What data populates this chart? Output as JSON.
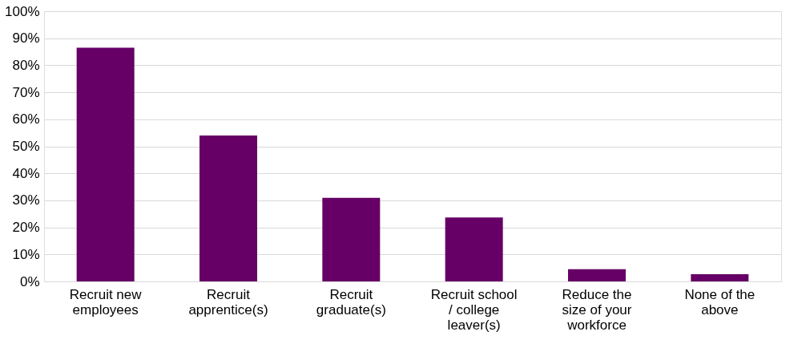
{
  "chart_data": {
    "type": "bar",
    "categories": [
      "Recruit new employees",
      "Recruit apprentice(s)",
      "Recruit graduate(s)",
      "Recruit school / college leaver(s)",
      "Reduce the size of your workforce",
      "None of the above"
    ],
    "values": [
      86.5,
      54,
      30.9,
      23.7,
      4.5,
      2.7
    ],
    "color": "#660066",
    "ylim": [
      0,
      100
    ],
    "yticks": [
      {
        "value": 0,
        "label": "0%"
      },
      {
        "value": 10,
        "label": "10%"
      },
      {
        "value": 20,
        "label": "20%"
      },
      {
        "value": 30,
        "label": "30%"
      },
      {
        "value": 40,
        "label": "40%"
      },
      {
        "value": 50,
        "label": "50%"
      },
      {
        "value": 60,
        "label": "60%"
      },
      {
        "value": 70,
        "label": "70%"
      },
      {
        "value": 80,
        "label": "80%"
      },
      {
        "value": 90,
        "label": "90%"
      },
      {
        "value": 100,
        "label": "100%"
      }
    ],
    "grid": "y"
  }
}
